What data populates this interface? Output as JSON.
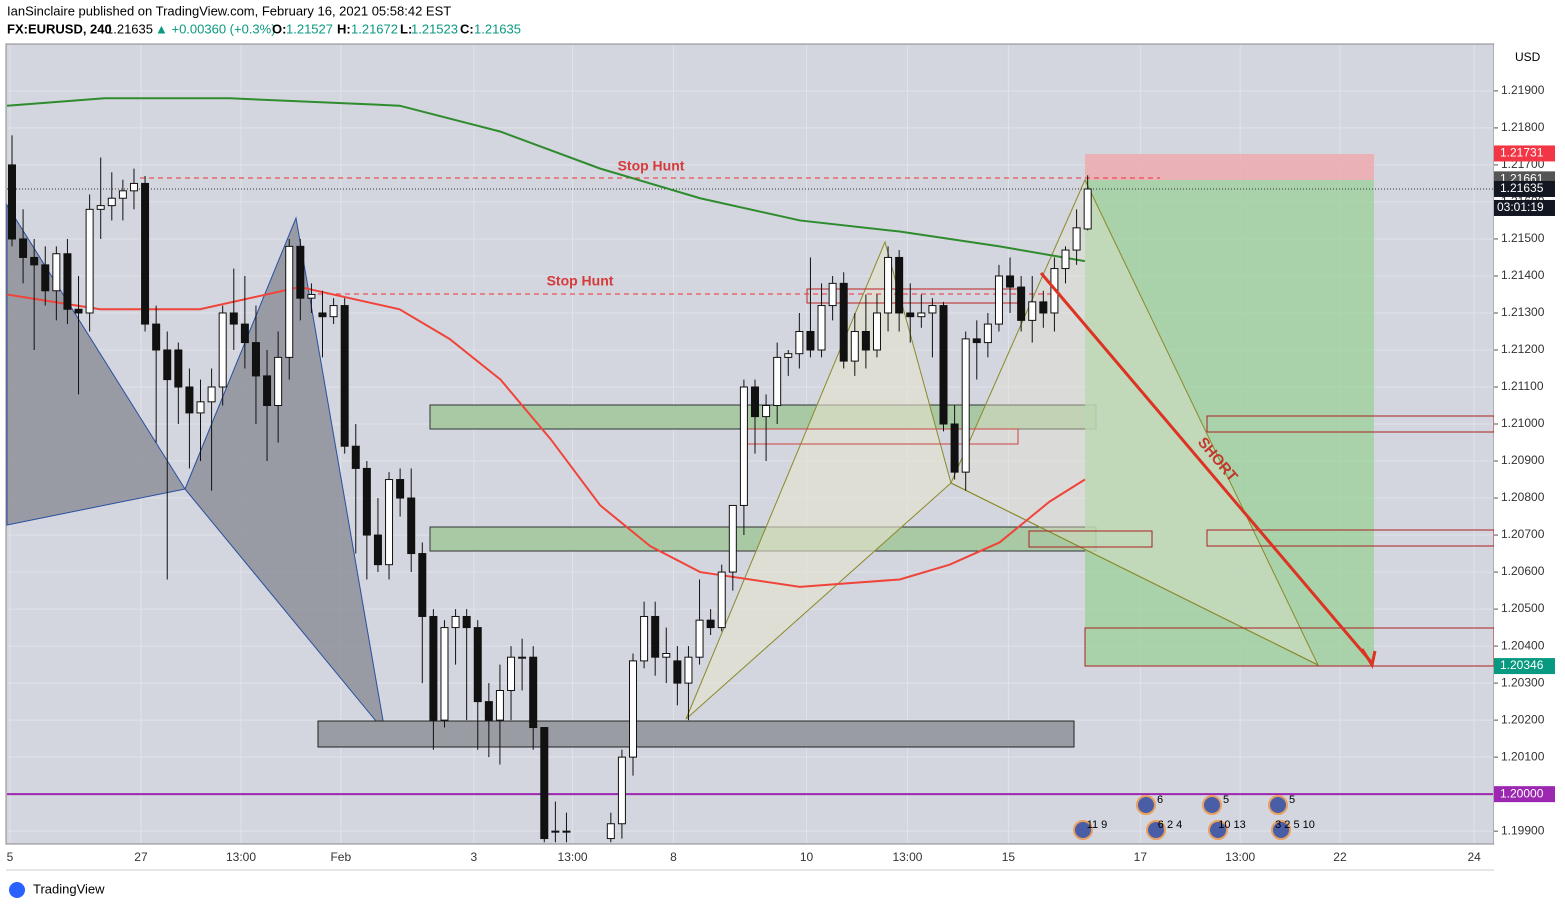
{
  "header": {
    "publisher": "IanSinclaire published on TradingView.com, February 16, 2021 05:58:42 EST",
    "symbol": "FX:EURUSD, 240",
    "last": "1.21635",
    "change": "▲ +0.00360 (+0.3%)",
    "o_label": "O:",
    "o": "1.21527",
    "h_label": "H:",
    "h": "1.21672",
    "l_label": "L:",
    "l": "1.21523",
    "c_label": "C:",
    "c": "1.21635"
  },
  "footer": {
    "brand": "TradingView"
  },
  "chart_data": {
    "type": "candlestick",
    "currency": "USD",
    "xlim": [
      0,
      134
    ],
    "ylim": [
      1.19868,
      1.22024
    ],
    "grid": true,
    "xticks": [
      {
        "value": 0.27,
        "label": "5"
      },
      {
        "value": 12.08,
        "label": "27"
      },
      {
        "value": 21.1,
        "label": "13:00"
      },
      {
        "value": 30.1,
        "label": "Feb"
      },
      {
        "value": 42.1,
        "label": "3"
      },
      {
        "value": 51.0,
        "label": "13:00"
      },
      {
        "value": 60.1,
        "label": "8"
      },
      {
        "value": 72.1,
        "label": "10"
      },
      {
        "value": 81.2,
        "label": "13:00"
      },
      {
        "value": 90.3,
        "label": "15"
      },
      {
        "value": 102.2,
        "label": "17"
      },
      {
        "value": 111.2,
        "label": "13:00"
      },
      {
        "value": 120.2,
        "label": "22"
      },
      {
        "value": 132.3,
        "label": "24"
      }
    ],
    "yticks": [
      {
        "value": 1.199,
        "label": "1.19900"
      },
      {
        "value": 1.2,
        "label": "1.20000"
      },
      {
        "value": 1.201,
        "label": "1.20100"
      },
      {
        "value": 1.202,
        "label": "1.20200"
      },
      {
        "value": 1.203,
        "label": "1.20300"
      },
      {
        "value": 1.204,
        "label": "1.20400"
      },
      {
        "value": 1.205,
        "label": "1.20500"
      },
      {
        "value": 1.206,
        "label": "1.20600"
      },
      {
        "value": 1.207,
        "label": "1.20700"
      },
      {
        "value": 1.208,
        "label": "1.20800"
      },
      {
        "value": 1.209,
        "label": "1.20900"
      },
      {
        "value": 1.21,
        "label": "1.21000"
      },
      {
        "value": 1.211,
        "label": "1.21100"
      },
      {
        "value": 1.212,
        "label": "1.21200"
      },
      {
        "value": 1.213,
        "label": "1.21300"
      },
      {
        "value": 1.214,
        "label": "1.21400"
      },
      {
        "value": 1.215,
        "label": "1.21500"
      },
      {
        "value": 1.216,
        "label": "1.21600"
      },
      {
        "value": 1.217,
        "label": "1.21700"
      },
      {
        "value": 1.218,
        "label": "1.21800"
      },
      {
        "value": 1.219,
        "label": "1.21900"
      }
    ],
    "x": [
      0.45,
      1.45,
      2.45,
      3.45,
      4.45,
      5.45,
      6.45,
      7.45,
      8.45,
      9.45,
      10.45,
      11.45,
      12.45,
      13.45,
      14.45,
      15.45,
      16.45,
      17.45,
      18.45,
      19.45,
      20.45,
      21.45,
      22.45,
      23.45,
      24.45,
      25.45,
      26.45,
      27.45,
      28.45,
      29.45,
      30.45,
      31.45,
      32.45,
      33.45,
      34.45,
      35.45,
      36.45,
      37.45,
      38.45,
      39.45,
      40.45,
      41.45,
      42.45,
      43.45,
      44.45,
      45.45,
      46.45,
      47.45,
      48.45,
      49.45,
      50.45,
      54.45,
      55.45,
      56.45,
      57.45,
      58.45,
      59.45,
      60.45,
      61.45,
      62.45,
      63.45,
      64.45,
      65.45,
      66.45,
      67.45,
      68.45,
      69.45,
      70.45,
      71.45,
      72.45,
      73.45,
      74.45,
      75.45,
      76.45,
      77.45,
      78.45,
      79.45,
      80.45,
      81.45,
      82.45,
      83.45,
      84.45,
      85.45,
      86.45,
      87.45,
      88.45,
      89.45,
      90.45,
      91.45,
      92.45,
      93.45,
      94.45,
      95.45,
      96.45,
      97.45
    ],
    "open": [
      1.217,
      1.215,
      1.2145,
      1.2143,
      1.2136,
      1.2146,
      1.2131,
      1.213,
      1.2158,
      1.2159,
      1.2161,
      1.2163,
      1.2165,
      1.2127,
      1.212,
      1.212,
      1.211,
      1.2103,
      1.2106,
      1.211,
      1.213,
      1.2127,
      1.2122,
      1.2113,
      1.2105,
      1.2118,
      1.2148,
      1.2134,
      1.213,
      1.2129,
      1.2132,
      1.2094,
      1.2088,
      1.207,
      1.2062,
      1.2085,
      1.208,
      1.2065,
      1.2048,
      1.202,
      1.2045,
      1.2048,
      1.2045,
      1.2025,
      1.202,
      1.2028,
      1.2037,
      1.2037,
      1.2018,
      1.199,
      1.199,
      1.1988,
      1.1992,
      1.201,
      1.2036,
      1.2048,
      1.2037,
      1.2036,
      1.203,
      1.2037,
      1.2047,
      1.2045,
      1.206,
      1.2078,
      1.211,
      1.2102,
      1.2105,
      1.2118,
      1.2119,
      1.2125,
      1.212,
      1.2132,
      1.2138,
      1.2117,
      1.2125,
      1.212,
      1.213,
      1.2145,
      1.213,
      1.2129,
      1.213,
      1.2132,
      1.21,
      1.2087,
      1.2123,
      1.2122,
      1.2127,
      1.214,
      1.2137,
      1.2128,
      1.2133,
      1.213,
      1.2142,
      1.2147,
      1.21527
    ],
    "high": [
      1.2178,
      1.2158,
      1.215,
      1.2148,
      1.2148,
      1.215,
      1.214,
      1.2162,
      1.2172,
      1.2168,
      1.2166,
      1.2169,
      1.2167,
      1.2132,
      1.2125,
      1.2122,
      1.2115,
      1.2112,
      1.2115,
      1.2132,
      1.2142,
      1.214,
      1.2132,
      1.212,
      1.2125,
      1.215,
      1.215,
      1.2138,
      1.2136,
      1.2134,
      1.2134,
      1.21,
      1.209,
      1.208,
      1.2087,
      1.2088,
      1.2088,
      1.2068,
      1.205,
      1.2047,
      1.205,
      1.205,
      1.2047,
      1.203,
      1.2035,
      1.204,
      1.2042,
      1.204,
      1.2018,
      1.1998,
      1.1995,
      1.1995,
      1.2012,
      1.2038,
      1.2052,
      1.2052,
      1.2045,
      1.204,
      1.204,
      1.2058,
      1.205,
      1.2062,
      1.2078,
      1.2112,
      1.2112,
      1.2108,
      1.2122,
      1.212,
      1.213,
      1.2145,
      1.2138,
      1.214,
      1.2141,
      1.213,
      1.2135,
      1.2135,
      1.2148,
      1.2147,
      1.2138,
      1.2135,
      1.2134,
      1.2133,
      1.2105,
      1.2125,
      1.2128,
      1.213,
      1.2143,
      1.2145,
      1.214,
      1.214,
      1.2136,
      1.2145,
      1.2148,
      1.2158,
      1.21672
    ],
    "low": [
      1.2148,
      1.2138,
      1.212,
      1.2132,
      1.2128,
      1.2127,
      1.2108,
      1.2125,
      1.215,
      1.2155,
      1.2155,
      1.2158,
      1.2125,
      1.2095,
      1.2058,
      1.21,
      1.2088,
      1.209,
      1.2082,
      1.2105,
      1.212,
      1.2115,
      1.21,
      1.209,
      1.2095,
      1.2112,
      1.2128,
      1.213,
      1.2118,
      1.2127,
      1.2092,
      1.2065,
      1.2058,
      1.206,
      1.2058,
      1.2075,
      1.206,
      1.203,
      1.2012,
      1.2018,
      1.2035,
      1.202,
      1.2012,
      1.201,
      1.2008,
      1.202,
      1.2028,
      1.2012,
      1.1987,
      1.1987,
      1.1987,
      1.1987,
      1.1988,
      1.2005,
      1.2034,
      1.2032,
      1.203,
      1.2024,
      1.202,
      1.2035,
      1.2043,
      1.2044,
      1.2055,
      1.207,
      1.2092,
      1.209,
      1.21,
      1.2113,
      1.2115,
      1.2118,
      1.2118,
      1.2128,
      1.2115,
      1.2113,
      1.2115,
      1.2118,
      1.2125,
      1.2125,
      1.2122,
      1.2126,
      1.2118,
      1.2098,
      1.2085,
      1.2082,
      1.2112,
      1.2118,
      1.2125,
      1.213,
      1.2125,
      1.2122,
      1.2126,
      1.2125,
      1.2138,
      1.2143,
      1.21523
    ],
    "close": [
      1.215,
      1.2145,
      1.2143,
      1.2136,
      1.2146,
      1.2131,
      1.213,
      1.2158,
      1.2159,
      1.2161,
      1.2163,
      1.2165,
      1.2127,
      1.212,
      1.2112,
      1.211,
      1.2103,
      1.2106,
      1.211,
      1.213,
      1.2127,
      1.2122,
      1.2113,
      1.2105,
      1.2118,
      1.2148,
      1.2134,
      1.2135,
      1.2129,
      1.2132,
      1.2094,
      1.2088,
      1.207,
      1.2062,
      1.2085,
      1.208,
      1.2065,
      1.2048,
      1.202,
      1.2045,
      1.2048,
      1.2045,
      1.2025,
      1.202,
      1.2028,
      1.2037,
      1.2037,
      1.2018,
      1.1988,
      1.199,
      1.199,
      1.1992,
      1.201,
      1.2036,
      1.2048,
      1.2037,
      1.2038,
      1.203,
      1.2037,
      1.2047,
      1.2045,
      1.206,
      1.2078,
      1.211,
      1.2102,
      1.2105,
      1.2118,
      1.2119,
      1.2125,
      1.212,
      1.2132,
      1.2138,
      1.2117,
      1.2125,
      1.212,
      1.213,
      1.2145,
      1.213,
      1.2129,
      1.213,
      1.2132,
      1.21,
      1.2087,
      1.2123,
      1.2122,
      1.2127,
      1.214,
      1.2137,
      1.2128,
      1.2133,
      1.213,
      1.2142,
      1.2147,
      1.2153,
      1.21635
    ],
    "lines": [
      {
        "color": "#2e8b2e",
        "x": [
          0,
          8.8,
          20.1,
          35.4,
          44.5,
          53.5,
          62.5,
          71.5,
          80.5,
          89.5,
          97.2
        ],
        "values": [
          1.2186,
          1.2188,
          1.2188,
          1.2186,
          1.2179,
          1.2169,
          1.2161,
          1.2155,
          1.2152,
          1.2148,
          1.2144
        ]
      },
      {
        "color": "#f0443a",
        "x": [
          0,
          8.4,
          17.4,
          26.4,
          35.4,
          39.9,
          44.5,
          49.0,
          53.5,
          58.0,
          62.5,
          71.5,
          76.0,
          80.5,
          85.0,
          89.5,
          94.0,
          97.2
        ],
        "values": [
          1.2135,
          1.2131,
          1.2131,
          1.2137,
          1.2131,
          1.2123,
          1.2112,
          1.2096,
          1.2078,
          1.2067,
          1.206,
          1.2056,
          1.2057,
          1.2058,
          1.2062,
          1.2068,
          1.2079,
          1.2085
        ]
      }
    ],
    "price_labels": [
      {
        "value": 1.21731,
        "label": "1.21731",
        "color": "#f23645"
      },
      {
        "value": 1.21661,
        "label": "1.21661",
        "color": "#555555"
      },
      {
        "value": 1.21635,
        "label": "1.21635",
        "color": "#131722"
      },
      {
        "value": 1.20346,
        "label": "1.20346",
        "color": "#089981"
      },
      {
        "value": 1.2,
        "label": "1.20000",
        "color": "#9c27b0"
      }
    ],
    "countdown": "03:01:19",
    "annotations": [
      "Stop Hunt",
      "Stop Hunt",
      "SHORT"
    ],
    "events": [
      "11 9",
      "6",
      "6 2 4",
      "5",
      "10 13",
      "5",
      "3 2 5 10"
    ]
  }
}
